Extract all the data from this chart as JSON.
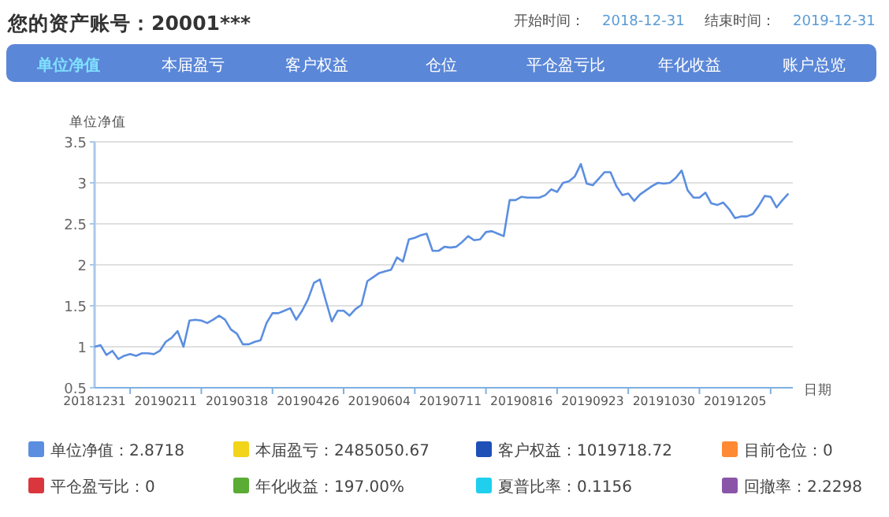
{
  "chart_data": [
    {
      "type": "line",
      "title": "您的资产账号：20001***",
      "annotations": [
        "开始时间：",
        "2018-12-31",
        "结束时间：",
        "2019-12-31",
        "单位净值",
        "本届盈亏",
        "客户权益",
        "仓位",
        "平仓盈亏比",
        "年化收益",
        "账户总览"
      ],
      "ylabel": "单位净值",
      "xlabel": "日期",
      "categories": [
        "20181231",
        null,
        null,
        null,
        null,
        null,
        null,
        null,
        null,
        null,
        null,
        null,
        "20190211",
        null,
        null,
        null,
        null,
        null,
        null,
        null,
        null,
        null,
        null,
        null,
        "20190318",
        null,
        null,
        null,
        null,
        null,
        null,
        null,
        null,
        null,
        null,
        null,
        "20190426",
        null,
        null,
        null,
        null,
        null,
        null,
        null,
        null,
        null,
        null,
        null,
        "20190604",
        null,
        null,
        null,
        null,
        null,
        null,
        null,
        null,
        null,
        null,
        null,
        "20190711",
        null,
        null,
        null,
        null,
        null,
        null,
        null,
        null,
        null,
        null,
        null,
        "20190816",
        null,
        null,
        null,
        null,
        null,
        null,
        null,
        null,
        null,
        null,
        null,
        "20190923",
        null,
        null,
        null,
        null,
        null,
        null,
        null,
        null,
        null,
        null,
        null,
        "20191030",
        null,
        null,
        null,
        null,
        null,
        null,
        null,
        null,
        null,
        null,
        null,
        "20191205",
        null,
        null,
        null,
        null,
        null,
        null,
        null,
        null,
        null
      ],
      "series": [
        {
          "color": "#5b8ee0",
          "values": [
            1.0,
            1.02,
            0.9,
            0.95,
            0.85,
            0.89,
            0.91,
            0.89,
            0.92,
            0.92,
            0.91,
            0.95,
            1.06,
            1.11,
            1.19,
            1.0,
            1.32,
            1.33,
            1.32,
            1.29,
            1.33,
            1.38,
            1.33,
            1.21,
            1.16,
            1.03,
            1.03,
            1.06,
            1.08,
            1.29,
            1.41,
            1.41,
            1.44,
            1.47,
            1.33,
            1.44,
            1.58,
            1.78,
            1.82,
            1.56,
            1.31,
            1.44,
            1.44,
            1.38,
            1.46,
            1.51,
            1.8,
            1.85,
            1.9,
            1.92,
            1.94,
            2.09,
            2.04,
            2.31,
            2.33,
            2.36,
            2.38,
            2.17,
            2.17,
            2.22,
            2.21,
            2.22,
            2.28,
            2.35,
            2.3,
            2.31,
            2.4,
            2.41,
            2.38,
            2.35,
            2.79,
            2.79,
            2.83,
            2.82,
            2.82,
            2.82,
            2.85,
            2.92,
            2.89,
            3.0,
            3.02,
            3.08,
            3.23,
            2.99,
            2.97,
            3.05,
            3.13,
            3.13,
            2.96,
            2.85,
            2.87,
            2.78,
            2.86,
            2.91,
            2.96,
            3.0,
            2.99,
            3.0,
            3.06,
            3.15,
            2.91,
            2.82,
            2.82,
            2.88,
            2.75,
            2.73,
            2.76,
            2.68,
            2.57,
            2.59,
            2.59,
            2.62,
            2.72,
            2.84,
            2.83,
            2.7,
            2.79,
            2.87
          ]
        }
      ],
      "ylim": [
        0.5,
        3.5
      ],
      "yticks": [
        0.5,
        1,
        1.5,
        2,
        2.5,
        3,
        3.5
      ],
      "grid": "y"
    },
    {
      "type": "other",
      "annotations": [
        "单位净值：2.8718",
        "本届盈亏：2485050.67",
        "客户权益：1019718.72",
        "目前仓位：0",
        "平仓盈亏比：0",
        "年化收益：197.00%",
        "夏普比率：0.1156",
        "回撤率：2.2298"
      ],
      "colors": [
        "#5b8ee0",
        "#f2d41a",
        "#1f50b8",
        "#ff8a33",
        "#d9363e",
        "#5aac34",
        "#20cfee",
        "#8a55a8"
      ]
    }
  ]
}
